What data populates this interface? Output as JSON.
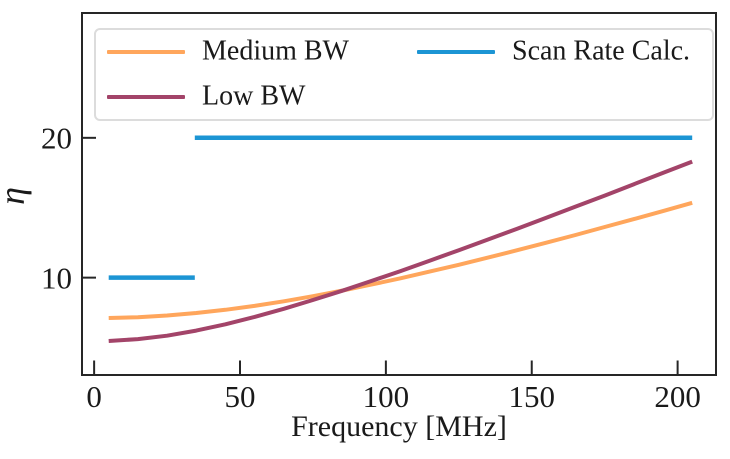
{
  "figure": {
    "background": "#ffffff",
    "spine_color": "#262626",
    "text_color": "#1a1a1a",
    "tick_color": "#262626",
    "legend_border_color": "#dcdcdc"
  },
  "chart_data": {
    "type": "line",
    "title": "",
    "xlabel": "Frequency [MHz]",
    "ylabel": "η",
    "xlim": [
      -4.5,
      213.5
    ],
    "ylim": [
      3,
      29
    ],
    "grid": false,
    "legend_position": "upper left, two columns, framed",
    "xticks": [
      0,
      50,
      100,
      150,
      200
    ],
    "xtick_labels": [
      "0",
      "50",
      "100",
      "150",
      "200"
    ],
    "yticks": [
      10,
      20
    ],
    "ytick_labels": [
      "10",
      "20"
    ],
    "series": [
      {
        "name": "Medium BW",
        "color": "#FFA65C",
        "line_width": 4,
        "x": [
          5,
          15,
          25,
          35,
          45,
          55,
          65,
          75,
          85,
          95,
          105,
          115,
          125,
          135,
          145,
          155,
          165,
          175,
          185,
          195,
          205
        ],
        "y": [
          7.11,
          7.17,
          7.29,
          7.47,
          7.7,
          7.98,
          8.31,
          8.67,
          9.07,
          9.5,
          9.95,
          10.43,
          10.92,
          11.43,
          11.96,
          12.5,
          13.05,
          13.62,
          14.19,
          14.76,
          15.35
        ]
      },
      {
        "name": "Low BW",
        "color": "#A34469",
        "line_width": 4,
        "x": [
          5,
          15,
          25,
          35,
          45,
          55,
          65,
          75,
          85,
          95,
          105,
          115,
          125,
          135,
          145,
          155,
          165,
          175,
          185,
          195,
          205
        ],
        "y": [
          5.47,
          5.6,
          5.85,
          6.21,
          6.66,
          7.19,
          7.77,
          8.4,
          9.06,
          9.76,
          10.47,
          11.21,
          11.96,
          12.73,
          13.5,
          14.29,
          15.08,
          15.87,
          16.68,
          17.49,
          18.3
        ]
      },
      {
        "name": "Scan Rate Calc.",
        "color": "#1C95D4",
        "line_width": 4.5,
        "segments": [
          {
            "x": [
              5,
              34.5
            ],
            "y": [
              10,
              10
            ]
          },
          {
            "x": [
              34.5,
              205
            ],
            "y": [
              20,
              20
            ]
          }
        ]
      }
    ]
  },
  "legend": {
    "items": [
      {
        "label": "Medium BW"
      },
      {
        "label": "Low BW"
      },
      {
        "label": "Scan Rate Calc."
      }
    ]
  }
}
